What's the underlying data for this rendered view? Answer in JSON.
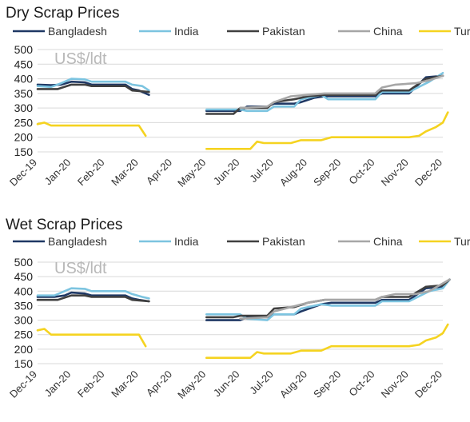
{
  "chart_data": [
    {
      "type": "line",
      "title": "Dry Scrap Prices",
      "unit_label": "US$/ldt",
      "y_ticks": [
        150,
        200,
        250,
        300,
        350,
        400,
        450,
        500
      ],
      "ylim": [
        150,
        500
      ],
      "x_ticks": [
        "Dec-19",
        "Jan-20",
        "Feb-20",
        "Mar-20",
        "Apr-20",
        "May-20",
        "Jun-20",
        "Jul-20",
        "Aug-20",
        "Sep-20",
        "Oct-20",
        "Nov-20",
        "Dec-20"
      ],
      "grid": true,
      "legend_position": "top",
      "series": [
        {
          "name": "Bangladesh",
          "color": "#1f3864",
          "segments": [
            [
              [
                0,
                380
              ],
              [
                0.4,
                378
              ],
              [
                0.7,
                380
              ],
              [
                1.0,
                390
              ],
              [
                1.4,
                388
              ],
              [
                1.6,
                380
              ],
              [
                2.6,
                380
              ],
              [
                2.8,
                365
              ],
              [
                3.0,
                360
              ],
              [
                3.3,
                345
              ]
            ],
            [
              [
                5.0,
                290
              ],
              [
                6.0,
                290
              ],
              [
                6.2,
                305
              ],
              [
                6.8,
                305
              ],
              [
                7.0,
                315
              ],
              [
                7.6,
                315
              ],
              [
                7.8,
                320
              ],
              [
                8.2,
                335
              ],
              [
                8.5,
                340
              ],
              [
                10.0,
                340
              ],
              [
                10.2,
                350
              ],
              [
                11.0,
                350
              ],
              [
                11.5,
                405
              ],
              [
                12.0,
                410
              ]
            ]
          ]
        },
        {
          "name": "India",
          "color": "#7cc4e0",
          "segments": [
            [
              [
                0,
                375
              ],
              [
                0.4,
                372
              ],
              [
                0.7,
                385
              ],
              [
                1.0,
                400
              ],
              [
                1.4,
                398
              ],
              [
                1.6,
                390
              ],
              [
                2.6,
                390
              ],
              [
                2.8,
                380
              ],
              [
                3.1,
                375
              ],
              [
                3.3,
                360
              ]
            ],
            [
              [
                5.0,
                295
              ],
              [
                6.0,
                295
              ],
              [
                6.2,
                290
              ],
              [
                6.8,
                290
              ],
              [
                7.0,
                305
              ],
              [
                7.6,
                305
              ],
              [
                7.8,
                330
              ],
              [
                8.4,
                345
              ],
              [
                8.6,
                330
              ],
              [
                10.0,
                330
              ],
              [
                10.2,
                355
              ],
              [
                11.0,
                355
              ],
              [
                11.6,
                390
              ],
              [
                12.0,
                420
              ]
            ]
          ]
        },
        {
          "name": "Pakistan",
          "color": "#404040",
          "segments": [
            [
              [
                0,
                365
              ],
              [
                0.6,
                365
              ],
              [
                1.0,
                380
              ],
              [
                1.4,
                380
              ],
              [
                1.6,
                375
              ],
              [
                2.6,
                375
              ],
              [
                2.8,
                360
              ],
              [
                3.3,
                355
              ]
            ],
            [
              [
                5.0,
                280
              ],
              [
                5.8,
                280
              ],
              [
                6.0,
                300
              ],
              [
                6.8,
                300
              ],
              [
                7.0,
                320
              ],
              [
                7.6,
                330
              ],
              [
                8.0,
                340
              ],
              [
                8.5,
                345
              ],
              [
                10.0,
                345
              ],
              [
                10.2,
                360
              ],
              [
                11.0,
                360
              ],
              [
                11.5,
                400
              ],
              [
                12.0,
                410
              ]
            ]
          ]
        },
        {
          "name": "China",
          "color": "#a6a6a6",
          "segments": [
            [
              [
                6.0,
                300
              ],
              [
                6.8,
                305
              ],
              [
                7.0,
                320
              ],
              [
                7.5,
                340
              ],
              [
                8.0,
                345
              ],
              [
                8.5,
                350
              ],
              [
                10.0,
                350
              ],
              [
                10.2,
                370
              ],
              [
                10.6,
                380
              ],
              [
                11.2,
                385
              ],
              [
                11.6,
                395
              ],
              [
                12.0,
                410
              ]
            ]
          ]
        },
        {
          "name": "Turkey",
          "color": "#f5d320",
          "segments": [
            [
              [
                0,
                245
              ],
              [
                0.2,
                250
              ],
              [
                0.4,
                240
              ],
              [
                2.9,
                240
              ],
              [
                3.0,
                240
              ],
              [
                3.2,
                205
              ]
            ],
            [
              [
                5.0,
                160
              ],
              [
                6.3,
                160
              ],
              [
                6.5,
                185
              ],
              [
                6.7,
                180
              ],
              [
                7.5,
                180
              ],
              [
                7.8,
                190
              ],
              [
                8.4,
                190
              ],
              [
                8.7,
                200
              ],
              [
                11.0,
                200
              ],
              [
                11.3,
                205
              ],
              [
                11.5,
                220
              ],
              [
                11.8,
                235
              ],
              [
                12.0,
                250
              ],
              [
                12.15,
                285
              ]
            ]
          ]
        }
      ]
    },
    {
      "type": "line",
      "title": "Wet Scrap Prices",
      "unit_label": "US$/ldt",
      "y_ticks": [
        150,
        200,
        250,
        300,
        350,
        400,
        450,
        500
      ],
      "ylim": [
        150,
        500
      ],
      "x_ticks": [
        "Dec-19",
        "Jan-20",
        "Feb-20",
        "Mar-20",
        "Apr-20",
        "May-20",
        "Jun-20",
        "Jul-20",
        "Aug-20",
        "Sep-20",
        "Oct-20",
        "Nov-20",
        "Dec-20"
      ],
      "grid": true,
      "legend_position": "top",
      "series": [
        {
          "name": "Bangladesh",
          "color": "#1f3864",
          "segments": [
            [
              [
                0,
                380
              ],
              [
                0.5,
                380
              ],
              [
                0.8,
                385
              ],
              [
                1.0,
                395
              ],
              [
                1.4,
                392
              ],
              [
                1.6,
                385
              ],
              [
                2.6,
                385
              ],
              [
                2.8,
                375
              ],
              [
                3.0,
                370
              ],
              [
                3.3,
                365
              ]
            ],
            [
              [
                5.0,
                300
              ],
              [
                6.0,
                300
              ],
              [
                6.2,
                310
              ],
              [
                6.8,
                310
              ],
              [
                7.0,
                320
              ],
              [
                7.6,
                320
              ],
              [
                7.8,
                330
              ],
              [
                8.4,
                355
              ],
              [
                8.7,
                360
              ],
              [
                10.0,
                360
              ],
              [
                10.2,
                370
              ],
              [
                11.0,
                370
              ],
              [
                11.5,
                410
              ],
              [
                12.0,
                415
              ],
              [
                12.2,
                440
              ]
            ]
          ]
        },
        {
          "name": "India",
          "color": "#7cc4e0",
          "segments": [
            [
              [
                0,
                385
              ],
              [
                0.5,
                385
              ],
              [
                0.8,
                400
              ],
              [
                1.0,
                410
              ],
              [
                1.4,
                408
              ],
              [
                1.6,
                400
              ],
              [
                2.6,
                400
              ],
              [
                2.8,
                390
              ],
              [
                3.1,
                380
              ],
              [
                3.3,
                375
              ]
            ],
            [
              [
                5.0,
                320
              ],
              [
                6.0,
                320
              ],
              [
                6.2,
                305
              ],
              [
                6.8,
                300
              ],
              [
                7.0,
                320
              ],
              [
                7.6,
                320
              ],
              [
                7.8,
                340
              ],
              [
                8.4,
                355
              ],
              [
                8.7,
                350
              ],
              [
                10.0,
                350
              ],
              [
                10.2,
                365
              ],
              [
                11.0,
                365
              ],
              [
                11.6,
                400
              ],
              [
                12.0,
                410
              ],
              [
                12.2,
                440
              ]
            ]
          ]
        },
        {
          "name": "Pakistan",
          "color": "#404040",
          "segments": [
            [
              [
                0,
                370
              ],
              [
                0.6,
                370
              ],
              [
                1.0,
                385
              ],
              [
                1.4,
                385
              ],
              [
                1.6,
                380
              ],
              [
                2.6,
                380
              ],
              [
                2.8,
                370
              ],
              [
                3.3,
                365
              ]
            ],
            [
              [
                5.0,
                310
              ],
              [
                5.8,
                310
              ],
              [
                6.0,
                315
              ],
              [
                6.8,
                315
              ],
              [
                7.0,
                340
              ],
              [
                7.6,
                345
              ],
              [
                8.0,
                360
              ],
              [
                8.5,
                370
              ],
              [
                10.0,
                370
              ],
              [
                10.2,
                380
              ],
              [
                11.0,
                380
              ],
              [
                11.5,
                415
              ],
              [
                12.0,
                420
              ],
              [
                12.2,
                440
              ]
            ]
          ]
        },
        {
          "name": "China",
          "color": "#a6a6a6",
          "segments": [
            [
              [
                6.0,
                305
              ],
              [
                6.8,
                310
              ],
              [
                7.0,
                330
              ],
              [
                7.5,
                345
              ],
              [
                8.0,
                360
              ],
              [
                8.5,
                370
              ],
              [
                10.0,
                370
              ],
              [
                10.2,
                380
              ],
              [
                10.6,
                390
              ],
              [
                11.2,
                390
              ],
              [
                11.6,
                400
              ],
              [
                12.2,
                440
              ]
            ]
          ]
        },
        {
          "name": "Turkey",
          "color": "#f5d320",
          "segments": [
            [
              [
                0,
                265
              ],
              [
                0.2,
                270
              ],
              [
                0.4,
                250
              ],
              [
                2.9,
                250
              ],
              [
                3.0,
                250
              ],
              [
                3.2,
                210
              ]
            ],
            [
              [
                5.0,
                170
              ],
              [
                6.3,
                170
              ],
              [
                6.5,
                190
              ],
              [
                6.7,
                185
              ],
              [
                7.5,
                185
              ],
              [
                7.8,
                195
              ],
              [
                8.4,
                195
              ],
              [
                8.7,
                210
              ],
              [
                11.0,
                210
              ],
              [
                11.3,
                215
              ],
              [
                11.5,
                230
              ],
              [
                11.8,
                240
              ],
              [
                12.0,
                255
              ],
              [
                12.15,
                285
              ]
            ]
          ]
        }
      ]
    }
  ]
}
